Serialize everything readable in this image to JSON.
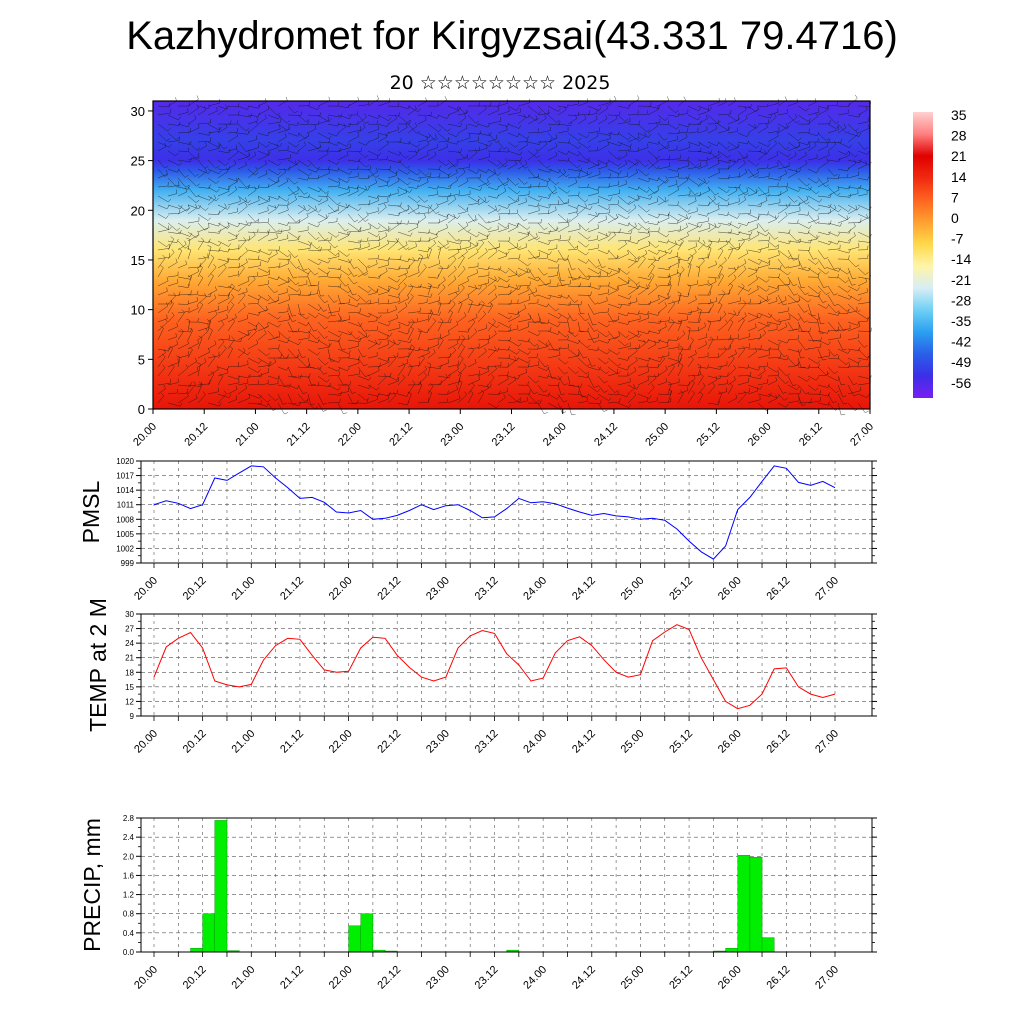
{
  "header": {
    "title": "Kazhydromet for Kirgyzsai(43.331 79.4716)",
    "subtitle": "20 ☆☆☆☆☆☆☆☆ 2025"
  },
  "time_labels": [
    "20.00",
    "20.12",
    "21.00",
    "21.12",
    "22.00",
    "22.12",
    "23.00",
    "23.12",
    "24.00",
    "24.12",
    "25.00",
    "25.12",
    "26.00",
    "26.12",
    "27.00"
  ],
  "chart_data": [
    {
      "type": "heatmap",
      "title": "",
      "x_tick_labels": [
        "20.00",
        "20.12",
        "21.00",
        "21.12",
        "22.00",
        "22.12",
        "23.00",
        "23.12",
        "24.00",
        "24.12",
        "25.00",
        "25.12",
        "26.00",
        "26.12",
        "27.00"
      ],
      "xlim": [
        0,
        168
      ],
      "ylim": [
        0,
        31
      ],
      "y_ticks": [
        0,
        5,
        10,
        15,
        20,
        25,
        30
      ],
      "y_tick_labels": [
        "0",
        "5",
        "10",
        "15",
        "20",
        "25",
        "30"
      ],
      "colorbar": {
        "labels": [
          "35",
          "28",
          "21",
          "14",
          "7",
          "0",
          "-7",
          "-14",
          "-21",
          "-28",
          "-35",
          "-42",
          "-49",
          "-56"
        ],
        "min": -63,
        "max": 42,
        "colors": [
          "#7a1ff0",
          "#3c2fe8",
          "#2a5fe8",
          "#2aa0f0",
          "#6fd0f5",
          "#d8eef5",
          "#fff5a8",
          "#ffd84a",
          "#ffa030",
          "#ff6420",
          "#f02a10",
          "#e00000",
          "#ff8080",
          "#ffd0d0"
        ]
      },
      "temperature_profile": [
        {
          "level": 0,
          "value": 22
        },
        {
          "level": 4,
          "value": 16
        },
        {
          "level": 9,
          "value": 10
        },
        {
          "level": 13,
          "value": 0
        },
        {
          "level": 16,
          "value": -10
        },
        {
          "level": 19,
          "value": -22
        },
        {
          "level": 22,
          "value": -36
        },
        {
          "level": 24,
          "value": -48
        },
        {
          "level": 25,
          "value": -55
        },
        {
          "level": 27,
          "value": -52
        },
        {
          "level": 31,
          "value": -58
        }
      ],
      "overlay": "wind barbs"
    },
    {
      "type": "line",
      "ylabel": "PMSL",
      "x_tick_labels": [
        "20.00",
        "20.12",
        "21.00",
        "21.12",
        "22.00",
        "22.12",
        "23.00",
        "23.12",
        "24.00",
        "24.12",
        "25.00",
        "25.12",
        "26.00",
        "26.12",
        "27.00"
      ],
      "ylim": [
        999,
        1020
      ],
      "y_ticks": [
        999,
        1002,
        1005,
        1008,
        1011,
        1014,
        1017,
        1020
      ],
      "y_tick_labels": [
        "999",
        "1002",
        "1005",
        "1008",
        "1011",
        "1014",
        "1017",
        "1020"
      ],
      "x": [
        0,
        3,
        6,
        9,
        12,
        15,
        18,
        21,
        24,
        27,
        30,
        33,
        36,
        39,
        42,
        45,
        48,
        51,
        54,
        57,
        60,
        63,
        66,
        69,
        72,
        75,
        78,
        81,
        84,
        87,
        90,
        93,
        96,
        99,
        102,
        105,
        108,
        111,
        114,
        117,
        120,
        123,
        126,
        129,
        132,
        135,
        138,
        141,
        144,
        147,
        150,
        153,
        156,
        159,
        162,
        165,
        168
      ],
      "values": [
        1011.0,
        1011.8,
        1011.3,
        1010.2,
        1011.0,
        1016.5,
        1016.0,
        1017.5,
        1019.0,
        1018.8,
        1016.5,
        1014.5,
        1012.3,
        1012.5,
        1011.5,
        1009.5,
        1009.3,
        1009.8,
        1008.0,
        1008.2,
        1008.8,
        1009.8,
        1011.0,
        1010.0,
        1010.8,
        1011.0,
        1009.8,
        1008.3,
        1008.5,
        1010.2,
        1012.3,
        1011.4,
        1011.6,
        1011.2,
        1010.3,
        1009.5,
        1008.8,
        1009.2,
        1008.7,
        1008.5,
        1008.0,
        1008.2,
        1007.8,
        1006.0,
        1003.5,
        1001.3,
        999.8,
        1002.5,
        1010.0,
        1012.5,
        1015.8,
        1019.0,
        1018.5,
        1015.6,
        1015.0,
        1015.8,
        1014.5
      ]
    },
    {
      "type": "line",
      "ylabel": "TEMP at 2 M",
      "x_tick_labels": [
        "20.00",
        "20.12",
        "21.00",
        "21.12",
        "22.00",
        "22.12",
        "23.00",
        "23.12",
        "24.00",
        "24.12",
        "25.00",
        "25.12",
        "26.00",
        "26.12",
        "27.00"
      ],
      "ylim": [
        9,
        30
      ],
      "y_ticks": [
        9,
        12,
        15,
        18,
        21,
        24,
        27,
        30
      ],
      "y_tick_labels": [
        "9",
        "12",
        "15",
        "18",
        "21",
        "24",
        "27",
        "30"
      ],
      "x": [
        0,
        3,
        6,
        9,
        12,
        15,
        18,
        21,
        24,
        27,
        30,
        33,
        36,
        39,
        42,
        45,
        48,
        51,
        54,
        57,
        60,
        63,
        66,
        69,
        72,
        75,
        78,
        81,
        84,
        87,
        90,
        93,
        96,
        99,
        102,
        105,
        108,
        111,
        114,
        117,
        120,
        123,
        126,
        129,
        132,
        135,
        138,
        141,
        144,
        147,
        150,
        153,
        156,
        159,
        162,
        165,
        168
      ],
      "values": [
        17.0,
        23.2,
        25.0,
        26.2,
        23.0,
        16.2,
        15.4,
        15.0,
        15.5,
        20.5,
        23.5,
        25.0,
        24.8,
        21.5,
        18.5,
        18.0,
        18.2,
        23.0,
        25.2,
        25.0,
        21.5,
        19.0,
        17.0,
        16.2,
        17.0,
        23.0,
        25.5,
        26.6,
        26.0,
        21.8,
        19.5,
        16.2,
        16.8,
        22.0,
        24.5,
        25.3,
        23.5,
        20.6,
        18.0,
        17.0,
        17.5,
        24.5,
        26.3,
        27.8,
        26.8,
        21.0,
        16.5,
        12.0,
        10.5,
        11.2,
        13.5,
        18.7,
        18.9,
        15.0,
        13.5,
        12.8,
        13.5
      ]
    },
    {
      "type": "bar",
      "ylabel": "PRECIP, mm",
      "x_tick_labels": [
        "20.00",
        "20.12",
        "21.00",
        "21.12",
        "22.00",
        "22.12",
        "23.00",
        "23.12",
        "24.00",
        "24.12",
        "25.00",
        "25.12",
        "26.00",
        "26.12",
        "27.00"
      ],
      "ylim": [
        0,
        2.8
      ],
      "y_ticks": [
        0,
        0.4,
        0.8,
        1.2,
        1.6,
        2.0,
        2.4,
        2.8
      ],
      "y_tick_labels": [
        "0.0",
        "0.4",
        "0.8",
        "1.2",
        "1.6",
        "2.0",
        "2.4",
        "2.8"
      ],
      "bar_width": 3,
      "x": [
        10.5,
        13.5,
        16.5,
        19.5,
        49.5,
        52.5,
        55.5,
        58.5,
        88.5,
        139.5,
        142.5,
        145.5,
        148.5,
        151.5
      ],
      "values": [
        0.08,
        0.8,
        2.75,
        0.03,
        0.55,
        0.8,
        0.04,
        0.02,
        0.04,
        0.02,
        0.08,
        2.02,
        1.98,
        0.3
      ]
    }
  ]
}
